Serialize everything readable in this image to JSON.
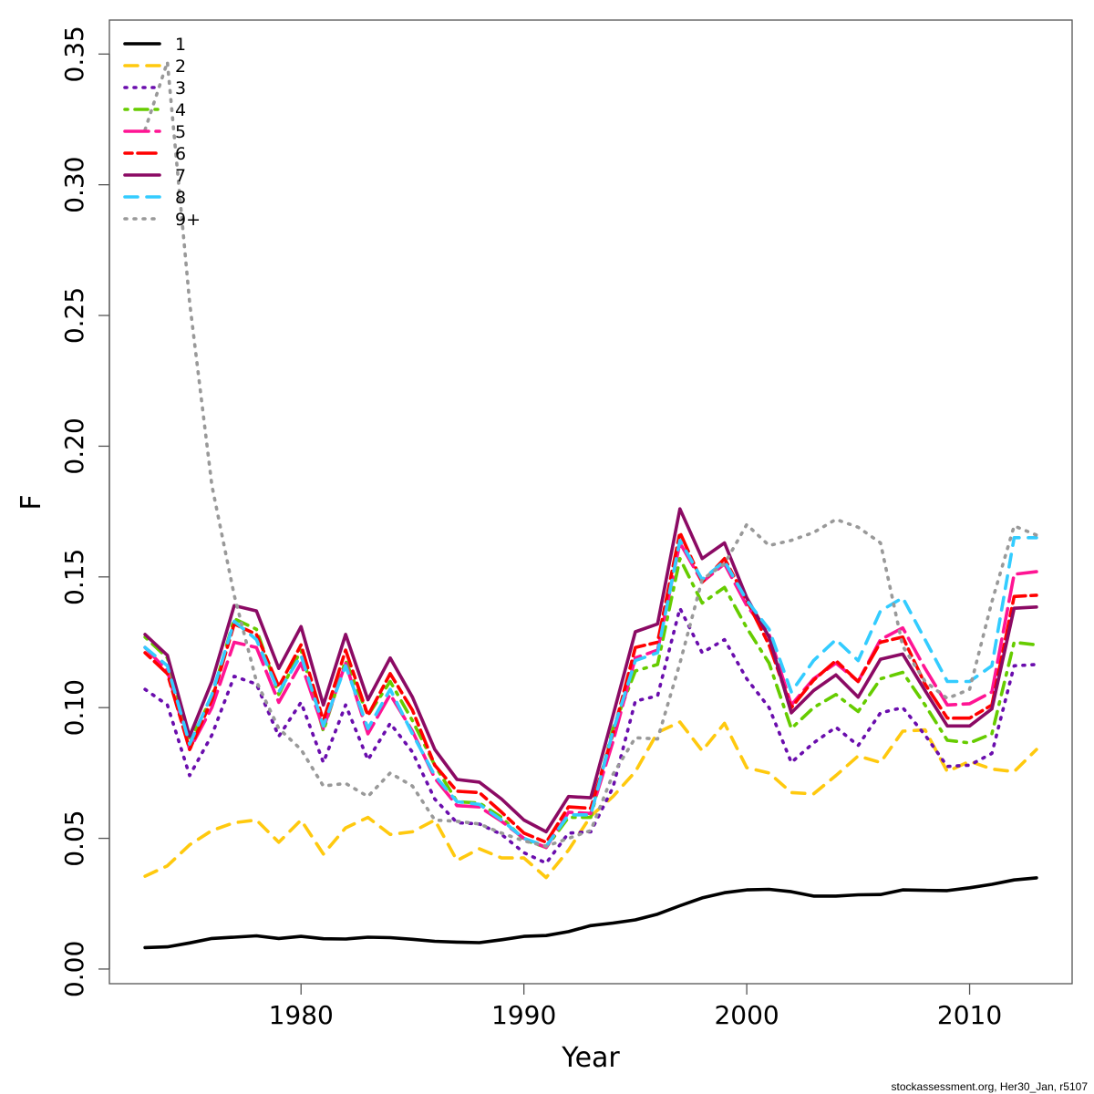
{
  "chart_data": {
    "type": "line",
    "title": "",
    "xlabel": "Year",
    "ylabel": "F",
    "xlim": [
      1971.4,
      2014.6
    ],
    "ylim": [
      -0.0056,
      0.363
    ],
    "x_ticks": [
      1980,
      1990,
      2000,
      2010
    ],
    "x_tick_labels": [
      "1980",
      "1990",
      "2000",
      "2010"
    ],
    "y_ticks": [
      0.0,
      0.05,
      0.1,
      0.15,
      0.2,
      0.25,
      0.3,
      0.35
    ],
    "y_tick_labels": [
      "0.00",
      "0.05",
      "0.10",
      "0.15",
      "0.20",
      "0.25",
      "0.30",
      "0.35"
    ],
    "grid": false,
    "legend_position": "top-left",
    "x": [
      1973,
      1974,
      1975,
      1976,
      1977,
      1978,
      1979,
      1980,
      1981,
      1982,
      1983,
      1984,
      1985,
      1986,
      1987,
      1988,
      1989,
      1990,
      1991,
      1992,
      1993,
      1994,
      1995,
      1996,
      1997,
      1998,
      1999,
      2000,
      2001,
      2002,
      2003,
      2004,
      2005,
      2006,
      2007,
      2008,
      2009,
      2010,
      2011,
      2012,
      2013
    ],
    "series": [
      {
        "name": "1",
        "color": "#000000",
        "dash": "solid",
        "values": [
          0.0082,
          0.0085,
          0.01,
          0.0117,
          0.0122,
          0.0127,
          0.0117,
          0.0125,
          0.0116,
          0.0115,
          0.0122,
          0.012,
          0.0114,
          0.0106,
          0.0103,
          0.0101,
          0.0112,
          0.0125,
          0.0128,
          0.0143,
          0.0166,
          0.0176,
          0.0188,
          0.021,
          0.0242,
          0.0272,
          0.0292,
          0.0303,
          0.0305,
          0.0296,
          0.0279,
          0.0279,
          0.0284,
          0.0285,
          0.0303,
          0.0301,
          0.03,
          0.0311,
          0.0324,
          0.0341,
          0.0349
        ]
      },
      {
        "name": "2",
        "color": "#FFC90E",
        "dash": "dashed",
        "values": [
          0.0355,
          0.0395,
          0.0475,
          0.053,
          0.056,
          0.057,
          0.0485,
          0.057,
          0.044,
          0.054,
          0.058,
          0.0515,
          0.0525,
          0.057,
          0.0415,
          0.046,
          0.0425,
          0.0425,
          0.035,
          0.0455,
          0.0585,
          0.066,
          0.0755,
          0.0905,
          0.0945,
          0.0835,
          0.094,
          0.077,
          0.075,
          0.0675,
          0.067,
          0.074,
          0.0815,
          0.079,
          0.091,
          0.0915,
          0.0755,
          0.0795,
          0.0765,
          0.0755,
          0.084
        ]
      },
      {
        "name": "3",
        "color": "#6A0DAD",
        "dash": "dotted",
        "values": [
          0.107,
          0.101,
          0.074,
          0.0895,
          0.112,
          0.109,
          0.089,
          0.102,
          0.079,
          0.101,
          0.08,
          0.094,
          0.083,
          0.065,
          0.056,
          0.0555,
          0.0515,
          0.0445,
          0.0405,
          0.052,
          0.0525,
          0.0695,
          0.1025,
          0.1045,
          0.138,
          0.121,
          0.126,
          0.111,
          0.1,
          0.079,
          0.0865,
          0.0925,
          0.0855,
          0.098,
          0.1,
          0.0895,
          0.0775,
          0.078,
          0.0825,
          0.116,
          0.1165
        ]
      },
      {
        "name": "4",
        "color": "#66CC00",
        "dash": "dotdash",
        "values": [
          0.127,
          0.119,
          0.087,
          0.104,
          0.134,
          0.13,
          0.105,
          0.122,
          0.091,
          0.118,
          0.097,
          0.11,
          0.095,
          0.078,
          0.064,
          0.0635,
          0.058,
          0.0495,
          0.0465,
          0.058,
          0.058,
          0.092,
          0.114,
          0.1165,
          0.157,
          0.14,
          0.146,
          0.1305,
          0.117,
          0.092,
          0.1,
          0.105,
          0.0985,
          0.111,
          0.1135,
          0.101,
          0.0875,
          0.0865,
          0.09,
          0.125,
          0.124
        ]
      },
      {
        "name": "5",
        "color": "#FF1493",
        "dash": "longdash",
        "values": [
          0.123,
          0.114,
          0.084,
          0.1,
          0.125,
          0.123,
          0.102,
          0.117,
          0.092,
          0.117,
          0.09,
          0.105,
          0.091,
          0.073,
          0.0625,
          0.062,
          0.0565,
          0.05,
          0.0465,
          0.06,
          0.0595,
          0.087,
          0.119,
          0.122,
          0.163,
          0.148,
          0.155,
          0.139,
          0.128,
          0.101,
          0.111,
          0.117,
          0.11,
          0.126,
          0.1305,
          0.115,
          0.101,
          0.1015,
          0.106,
          0.151,
          0.152
        ]
      },
      {
        "name": "6",
        "color": "#FF0000",
        "dash": "twodash",
        "values": [
          0.121,
          0.113,
          0.084,
          0.103,
          0.132,
          0.128,
          0.108,
          0.124,
          0.095,
          0.122,
          0.097,
          0.113,
          0.099,
          0.078,
          0.068,
          0.0675,
          0.06,
          0.052,
          0.0485,
          0.062,
          0.0615,
          0.09,
          0.123,
          0.125,
          0.167,
          0.148,
          0.157,
          0.141,
          0.124,
          0.1,
          0.1105,
          0.118,
          0.11,
          0.125,
          0.127,
          0.109,
          0.096,
          0.096,
          0.101,
          0.1425,
          0.143
        ]
      },
      {
        "name": "7",
        "color": "#8B0A64",
        "dash": "solid",
        "values": [
          0.128,
          0.12,
          0.089,
          0.11,
          0.139,
          0.137,
          0.115,
          0.131,
          0.101,
          0.128,
          0.103,
          0.119,
          0.104,
          0.084,
          0.0725,
          0.0715,
          0.065,
          0.057,
          0.0525,
          0.066,
          0.0655,
          0.097,
          0.129,
          0.132,
          0.176,
          0.157,
          0.163,
          0.142,
          0.127,
          0.098,
          0.1065,
          0.1125,
          0.104,
          0.1185,
          0.1205,
          0.1065,
          0.093,
          0.093,
          0.0995,
          0.138,
          0.1385
        ]
      },
      {
        "name": "8",
        "color": "#33CCFF",
        "dash": "dashed",
        "values": [
          0.123,
          0.116,
          0.086,
          0.105,
          0.133,
          0.126,
          0.106,
          0.12,
          0.093,
          0.116,
          0.092,
          0.107,
          0.09,
          0.074,
          0.064,
          0.063,
          0.057,
          0.05,
          0.047,
          0.059,
          0.059,
          0.091,
          0.118,
          0.121,
          0.164,
          0.149,
          0.156,
          0.141,
          0.13,
          0.106,
          0.118,
          0.126,
          0.118,
          0.137,
          0.142,
          0.126,
          0.11,
          0.11,
          0.116,
          0.165,
          0.165
        ]
      },
      {
        "name": "9+",
        "color": "#999999",
        "dash": "dotted",
        "values": [
          0.321,
          0.347,
          0.255,
          0.185,
          0.143,
          0.11,
          0.092,
          0.084,
          0.07,
          0.071,
          0.066,
          0.075,
          0.07,
          0.057,
          0.0565,
          0.0555,
          0.052,
          0.049,
          0.047,
          0.05,
          0.053,
          0.0745,
          0.0885,
          0.088,
          0.117,
          0.149,
          0.155,
          0.17,
          0.162,
          0.164,
          0.167,
          0.172,
          0.169,
          0.163,
          0.1235,
          0.11,
          0.1035,
          0.107,
          0.1405,
          0.1695,
          0.166
        ]
      }
    ]
  },
  "footer": "stockassessment.org, Her30_Jan, r5107"
}
